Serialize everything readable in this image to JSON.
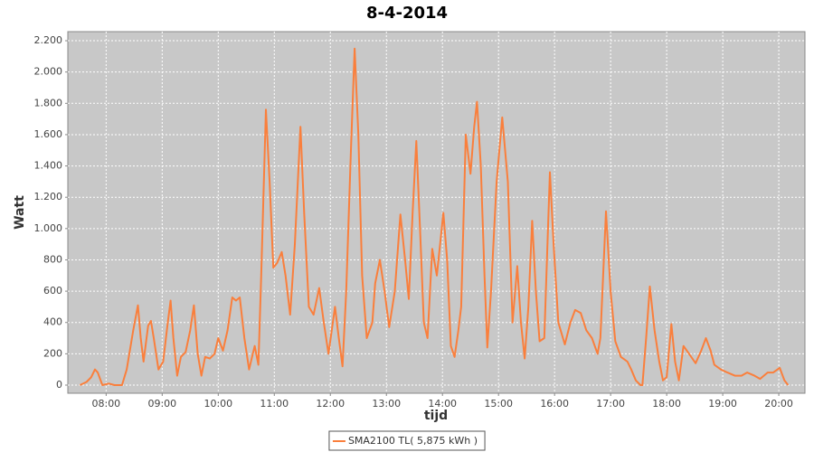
{
  "chart_data": {
    "type": "line",
    "title": "8-4-2014",
    "x_label": "tijd",
    "y_label": "Watt",
    "x": [
      "07:32",
      "07:39",
      "07:44",
      "07:48",
      "07:51",
      "07:56",
      "08:03",
      "08:09",
      "08:17",
      "08:22",
      "08:29",
      "08:34",
      "08:37",
      "08:40",
      "08:45",
      "08:48",
      "08:51",
      "08:56",
      "09:01",
      "09:06",
      "09:09",
      "09:12",
      "09:16",
      "09:20",
      "09:25",
      "09:30",
      "09:34",
      "09:38",
      "09:42",
      "09:46",
      "09:51",
      "09:56",
      "10:00",
      "10:05",
      "10:10",
      "10:15",
      "10:19",
      "10:23",
      "10:28",
      "10:33",
      "10:39",
      "10:43",
      "10:46",
      "10:51",
      "10:55",
      "10:59",
      "11:03",
      "11:08",
      "11:12",
      "11:17",
      "11:22",
      "11:28",
      "11:32",
      "11:37",
      "11:42",
      "11:48",
      "11:53",
      "11:58",
      "12:05",
      "12:09",
      "12:13",
      "12:17",
      "12:22",
      "12:26",
      "12:30",
      "12:34",
      "12:39",
      "12:45",
      "12:48",
      "12:53",
      "12:58",
      "13:03",
      "13:09",
      "13:15",
      "13:20",
      "13:24",
      "13:28",
      "13:32",
      "13:36",
      "13:40",
      "13:44",
      "13:49",
      "13:54",
      "14:01",
      "14:05",
      "14:09",
      "14:13",
      "14:17",
      "14:20",
      "14:25",
      "14:30",
      "14:34",
      "14:37",
      "14:41",
      "14:45",
      "14:48",
      "14:52",
      "14:58",
      "15:04",
      "15:10",
      "15:15",
      "15:20",
      "15:24",
      "15:28",
      "15:32",
      "15:36",
      "15:40",
      "15:44",
      "15:49",
      "15:55",
      "15:59",
      "16:04",
      "16:11",
      "16:17",
      "16:22",
      "16:28",
      "16:34",
      "16:40",
      "16:46",
      "16:49",
      "16:55",
      "17:00",
      "17:05",
      "17:11",
      "17:18",
      "17:22",
      "17:27",
      "17:32",
      "17:34",
      "17:38",
      "17:42",
      "17:47",
      "17:52",
      "17:56",
      "18:00",
      "18:05",
      "18:09",
      "18:13",
      "18:18",
      "18:24",
      "18:31",
      "18:37",
      "18:42",
      "18:47",
      "18:51",
      "18:58",
      "19:05",
      "19:13",
      "19:20",
      "19:26",
      "19:34",
      "19:40",
      "19:48",
      "19:54",
      "20:01",
      "20:06",
      "20:10"
    ],
    "series": [
      {
        "name": "SMA2100 TL( 5,875 kWh )",
        "color": "#fa7f3c",
        "values": [
          0,
          20,
          50,
          100,
          80,
          0,
          10,
          0,
          0,
          100,
          350,
          510,
          300,
          150,
          380,
          410,
          300,
          100,
          150,
          400,
          540,
          300,
          60,
          180,
          210,
          350,
          510,
          200,
          60,
          180,
          170,
          200,
          300,
          220,
          350,
          560,
          540,
          560,
          300,
          100,
          250,
          130,
          700,
          1760,
          1300,
          750,
          780,
          850,
          700,
          450,
          900,
          1650,
          1100,
          500,
          450,
          620,
          400,
          200,
          500,
          300,
          120,
          600,
          1500,
          2150,
          1600,
          700,
          300,
          400,
          650,
          800,
          600,
          370,
          600,
          1090,
          800,
          550,
          1100,
          1560,
          1000,
          400,
          300,
          870,
          700,
          1100,
          800,
          250,
          180,
          350,
          500,
          1600,
          1350,
          1650,
          1810,
          1400,
          700,
          240,
          600,
          1300,
          1710,
          1300,
          400,
          760,
          400,
          170,
          500,
          1050,
          600,
          280,
          300,
          1360,
          900,
          400,
          260,
          400,
          480,
          460,
          350,
          300,
          200,
          300,
          1110,
          600,
          280,
          180,
          150,
          100,
          30,
          0,
          0,
          300,
          630,
          350,
          150,
          30,
          50,
          390,
          150,
          30,
          250,
          200,
          140,
          220,
          300,
          220,
          130,
          100,
          80,
          60,
          60,
          80,
          60,
          40,
          80,
          80,
          110,
          30,
          0
        ]
      }
    ],
    "xlim": [
      "07:19",
      "20:28"
    ],
    "xticks": [
      "08:00",
      "09:00",
      "10:00",
      "11:00",
      "12:00",
      "13:00",
      "14:00",
      "15:00",
      "16:00",
      "17:00",
      "18:00",
      "19:00",
      "20:00"
    ],
    "ylim": [
      -52,
      2258
    ],
    "yticks": [
      0,
      200,
      400,
      600,
      800,
      {
        "value": 1000,
        "label": "1.000"
      },
      {
        "value": 1200,
        "label": "1.200"
      },
      {
        "value": 1400,
        "label": "1.400"
      },
      {
        "value": 1600,
        "label": "1.600"
      },
      {
        "value": 1800,
        "label": "1.800"
      },
      {
        "value": 2000,
        "label": "2.000"
      },
      {
        "value": 2200,
        "label": "2.200"
      }
    ],
    "grid": true,
    "legend": "bottom"
  }
}
